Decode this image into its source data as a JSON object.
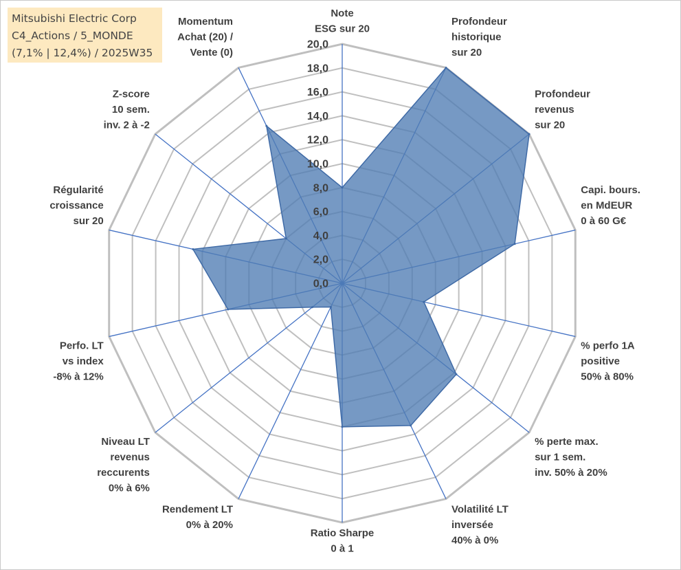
{
  "info_box": {
    "line1": "Mitsubishi Electric Corp",
    "line2": "C4_Actions / 5_MONDE",
    "line3": "(7,1% | 12,4%) / 2025W35"
  },
  "colors": {
    "fill": "#4f7cb3",
    "stroke": "#3f6aa6",
    "axis": "#4472c4",
    "grid": "#bfbfbf",
    "info_bg": "#fde9c0"
  },
  "chart_data": {
    "type": "radar",
    "title": "",
    "ylim": [
      0,
      20
    ],
    "tick_labels": [
      "0,0",
      "2,0",
      "4,0",
      "6,0",
      "8,0",
      "10,0",
      "12,0",
      "14,0",
      "16,0",
      "18,0",
      "20,0"
    ],
    "grid": true,
    "axes": [
      {
        "label": [
          "Note",
          "ESG sur 20"
        ],
        "value": 8.0
      },
      {
        "label": [
          "Profondeur",
          "historique",
          "sur 20"
        ],
        "value": 20.0
      },
      {
        "label": [
          "Profondeur",
          "revenus",
          "sur 20"
        ],
        "value": 20.0
      },
      {
        "label": [
          "Capi. bours.",
          "en MdEUR",
          "0 à 60 G€"
        ],
        "value": 14.8
      },
      {
        "label": [
          "% perfo 1A",
          "positive",
          "50% à 80%"
        ],
        "value": 7.0
      },
      {
        "label": [
          "% perte max.",
          "sur 1 sem.",
          "inv. 50% à 20%"
        ],
        "value": 12.2
      },
      {
        "label": [
          "Volatilité LT",
          "inversée",
          "40% à 0%"
        ],
        "value": 13.2
      },
      {
        "label": [
          "Ratio Sharpe",
          "0 à 1"
        ],
        "value": 12.0
      },
      {
        "label": [
          "Rendement LT",
          "0% à 20%"
        ],
        "value": 2.2
      },
      {
        "label": [
          "Niveau LT",
          "revenus",
          "reccurents",
          "0% à 6%"
        ],
        "value": 3.2
      },
      {
        "label": [
          "Perfo. LT",
          "vs index",
          "-8% à 12%"
        ],
        "value": 9.8
      },
      {
        "label": [
          "Régularité",
          "croissance",
          "sur 20"
        ],
        "value": 12.8
      },
      {
        "label": [
          "Z-score",
          "10 sem.",
          "inv. 2 à -2"
        ],
        "value": 6.0
      },
      {
        "label": [
          "Momentum",
          "Achat (20) /",
          "Vente (0)"
        ],
        "value": 14.6
      }
    ]
  }
}
